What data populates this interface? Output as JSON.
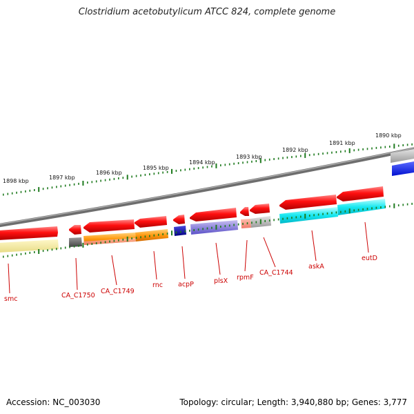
{
  "title": "Clostridium acetobutylicum ATCC 824, complete genome",
  "footer": {
    "accession": "Accession: NC_003030",
    "summary": "Topology: circular; Length: 3,940,880 bp; Genes: 3,777"
  },
  "colors": {
    "backbone": "#8a8a8a",
    "ticks": "#1e7a1e",
    "label": "#cc0000"
  },
  "scale_ticks": [
    "1898 kbp",
    "1897 kbp",
    "1896 kbp",
    "1895 kbp",
    "1894 kbp",
    "1893 kbp",
    "1892 kbp",
    "1891 kbp",
    "1890 kbp"
  ],
  "gene_labels": [
    "smc",
    "CA_C1750",
    "CA_C1749",
    "rnc",
    "acpP",
    "plsX",
    "rpmF",
    "CA_C1744",
    "askA",
    "eutD"
  ]
}
